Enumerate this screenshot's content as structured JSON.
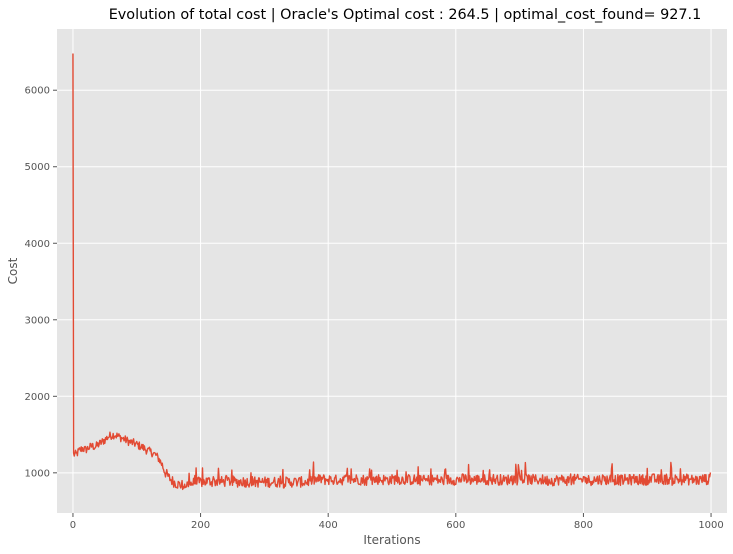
{
  "chart_data": {
    "type": "line",
    "title": "Evolution of total cost | Oracle's Optimal cost : 264.5 | optimal_cost_found= 927.1",
    "xlabel": "Iterations",
    "ylabel": "Cost",
    "xlim": [
      -25,
      1025
    ],
    "ylim": [
      475,
      6800
    ],
    "xticks": [
      0,
      200,
      400,
      600,
      800,
      1000
    ],
    "yticks": [
      1000,
      2000,
      3000,
      4000,
      5000,
      6000
    ],
    "grid": true,
    "colors": {
      "line": "#E24A33",
      "plot_bg": "#E5E5E5",
      "grid": "#FFFFFF"
    },
    "series": [
      {
        "name": "",
        "n_points": 1000,
        "values_sampled_every_5": [
          6480,
          1240,
          1290,
          1320,
          1300,
          1330,
          1350,
          1340,
          1370,
          1400,
          1430,
          1470,
          1490,
          1500,
          1480,
          1460,
          1440,
          1420,
          1400,
          1390,
          1370,
          1350,
          1330,
          1300,
          1280,
          1260,
          1230,
          1180,
          1100,
          1000,
          940,
          900,
          870,
          850,
          840,
          840,
          850,
          860,
          870,
          870,
          880,
          880,
          890,
          890,
          880,
          890,
          890,
          880,
          890,
          890,
          890,
          880,
          880,
          890,
          880,
          880,
          890,
          880,
          880,
          880,
          880,
          880,
          880,
          880,
          880,
          880,
          870,
          880,
          880,
          880,
          880,
          880,
          880,
          880,
          890,
          900,
          910,
          910,
          920,
          910,
          910,
          910,
          900,
          910,
          910,
          910,
          920,
          910,
          910,
          920,
          910,
          910,
          900,
          910,
          910,
          910,
          920,
          910,
          910,
          910,
          910,
          920,
          920,
          910,
          910,
          910,
          910,
          910,
          900,
          900,
          900,
          900,
          910,
          910,
          910,
          900,
          900,
          910,
          910,
          910,
          910,
          910,
          920,
          920,
          910,
          910,
          910,
          910,
          920,
          910,
          910,
          910,
          920,
          910,
          910,
          900,
          910,
          910,
          910,
          910,
          910,
          920,
          920,
          910,
          910,
          910,
          910,
          910,
          900,
          900,
          900,
          900,
          910,
          910,
          910,
          900,
          900,
          910,
          910,
          910,
          910,
          910,
          900,
          910,
          910,
          910,
          920,
          910,
          910,
          920,
          910,
          910,
          900,
          910,
          910,
          910,
          920,
          910,
          910,
          910,
          910,
          920,
          920,
          910,
          910,
          910,
          920,
          910,
          900,
          920,
          910,
          910,
          920,
          910,
          910,
          910,
          900,
          910,
          920,
          910
        ]
      }
    ]
  }
}
